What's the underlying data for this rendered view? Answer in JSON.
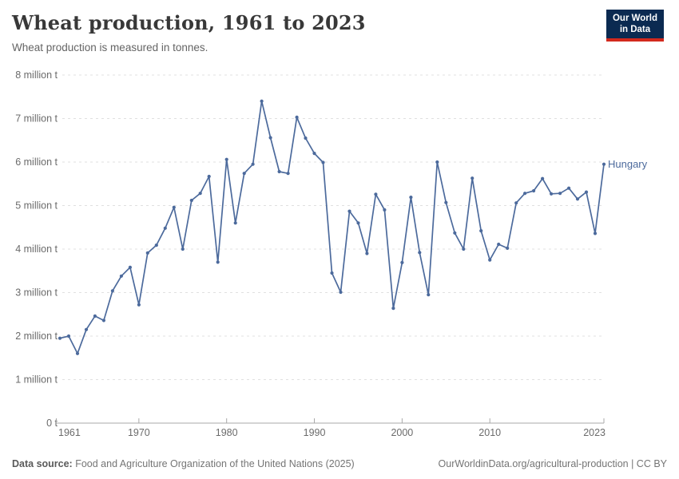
{
  "header": {
    "title": "Wheat production, 1961 to 2023",
    "subtitle": "Wheat production is measured in tonnes.",
    "logo": {
      "line1": "Our World",
      "line2": "in Data",
      "bg_color": "#0b2a51",
      "accent_color": "#d3291d"
    }
  },
  "chart_data": {
    "type": "line",
    "title": "Wheat production, 1961 to 2023",
    "xlabel": "",
    "ylabel": "",
    "xlim": [
      1961,
      2023
    ],
    "ylim": [
      0,
      8000000
    ],
    "grid": "horizontal-dashed",
    "legend_position": "end-of-line-label",
    "x_ticks": [
      1961,
      1970,
      1980,
      1990,
      2000,
      2010,
      2023
    ],
    "y_ticks": [
      {
        "value": 0,
        "label": "0 t"
      },
      {
        "value": 1000000,
        "label": "1 million t"
      },
      {
        "value": 2000000,
        "label": "2 million t"
      },
      {
        "value": 3000000,
        "label": "3 million t"
      },
      {
        "value": 4000000,
        "label": "4 million t"
      },
      {
        "value": 5000000,
        "label": "5 million t"
      },
      {
        "value": 6000000,
        "label": "6 million t"
      },
      {
        "value": 7000000,
        "label": "7 million t"
      },
      {
        "value": 8000000,
        "label": "8 million t"
      }
    ],
    "series": [
      {
        "name": "Hungary",
        "color": "#4c6a9c",
        "x": [
          1961,
          1962,
          1963,
          1964,
          1965,
          1966,
          1967,
          1968,
          1969,
          1970,
          1971,
          1972,
          1973,
          1974,
          1975,
          1976,
          1977,
          1978,
          1979,
          1980,
          1981,
          1982,
          1983,
          1984,
          1985,
          1986,
          1987,
          1988,
          1989,
          1990,
          1991,
          1992,
          1993,
          1994,
          1995,
          1996,
          1997,
          1998,
          1999,
          2000,
          2001,
          2002,
          2003,
          2004,
          2005,
          2006,
          2007,
          2008,
          2009,
          2010,
          2011,
          2012,
          2013,
          2014,
          2015,
          2016,
          2017,
          2018,
          2019,
          2020,
          2021,
          2022,
          2023
        ],
        "values": [
          1950000,
          2000000,
          1600000,
          2150000,
          2460000,
          2360000,
          3040000,
          3380000,
          3580000,
          2720000,
          3910000,
          4090000,
          4480000,
          4960000,
          4000000,
          5120000,
          5280000,
          5670000,
          3700000,
          6060000,
          4600000,
          5740000,
          5950000,
          7400000,
          6560000,
          5780000,
          5740000,
          7030000,
          6550000,
          6200000,
          5990000,
          3450000,
          3010000,
          4870000,
          4600000,
          3900000,
          5260000,
          4900000,
          2640000,
          3690000,
          5190000,
          3920000,
          2950000,
          6000000,
          5070000,
          4370000,
          4000000,
          5630000,
          4420000,
          3750000,
          4110000,
          4020000,
          5060000,
          5280000,
          5340000,
          5620000,
          5270000,
          5280000,
          5400000,
          5150000,
          5310000,
          4360000,
          5950000
        ]
      }
    ],
    "style": {
      "grid_color": "#e0e0e0",
      "axis_color": "#a8a8a8",
      "tick_label_color": "#6b6b6b"
    }
  },
  "footer": {
    "source_label": "Data source:",
    "source_text": " Food and Agriculture Organization of the United Nations (2025)",
    "right_text": "OurWorldinData.org/agricultural-production | CC BY"
  }
}
